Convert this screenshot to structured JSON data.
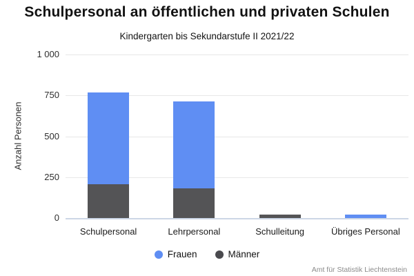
{
  "header": {
    "title": "Schulpersonal an öffentlichen und privaten Schulen",
    "subtitle": "Kindergarten bis Sekundarstufe II 2021/22"
  },
  "chart_data": {
    "type": "bar",
    "stacked": true,
    "title": "Schulpersonal an öffentlichen und privaten Schulen",
    "subtitle": "Kindergarten bis Sekundarstufe II 2021/22",
    "categories": [
      "Schulpersonal",
      "Lehrpersonal",
      "Schulleitung",
      "Übriges Personal"
    ],
    "series": [
      {
        "name": "Frauen",
        "color": "#5f8ef3",
        "values": [
          565,
          535,
          0,
          20
        ]
      },
      {
        "name": "Männer",
        "color": "#545456",
        "values": [
          205,
          180,
          20,
          0
        ]
      }
    ],
    "stack_order_bottom_to_top": [
      "Männer",
      "Frauen"
    ],
    "totals": [
      770,
      715,
      20,
      20
    ],
    "xlabel": "",
    "ylabel": "Anzahl Personen",
    "ylim": [
      0,
      1000
    ],
    "yticks": [
      {
        "value": 0,
        "label": "0"
      },
      {
        "value": 250,
        "label": "250"
      },
      {
        "value": 500,
        "label": "500"
      },
      {
        "value": 750,
        "label": "750"
      },
      {
        "value": 1000,
        "label": "1 000"
      }
    ],
    "grid": "horizontal",
    "legend": {
      "position": "bottom",
      "items": [
        {
          "label": "Frauen",
          "color": "#5f8ef3"
        },
        {
          "label": "Männer",
          "color": "#4a4a4e"
        }
      ]
    }
  },
  "footer": {
    "source": "Amt für Statistik Liechtenstein"
  }
}
